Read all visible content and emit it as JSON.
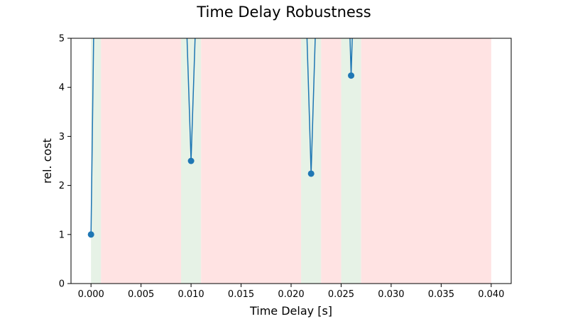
{
  "chart_data": {
    "type": "line",
    "title": "Time Delay Robustness",
    "xlabel": "Time Delay [s]",
    "ylabel": "rel. cost",
    "xlim": [
      -0.002,
      0.042
    ],
    "ylim": [
      0,
      5
    ],
    "xticks": [
      0.0,
      0.005,
      0.01,
      0.015,
      0.02,
      0.025,
      0.03,
      0.035,
      0.04
    ],
    "xtick_labels": [
      "0.000",
      "0.005",
      "0.010",
      "0.015",
      "0.020",
      "0.025",
      "0.030",
      "0.035",
      "0.040"
    ],
    "yticks": [
      0,
      1,
      2,
      3,
      4,
      5
    ],
    "ytick_labels": [
      "0",
      "1",
      "2",
      "3",
      "4",
      "5"
    ],
    "grid": false,
    "line_color": "#1f77b4",
    "stable_color": "#e6f2e6",
    "unstable_color": "#ffe3e3",
    "regions": [
      {
        "status": "stable",
        "x": [
          0.0,
          0.001
        ]
      },
      {
        "status": "unstable",
        "x": [
          0.001,
          0.009
        ]
      },
      {
        "status": "stable",
        "x": [
          0.009,
          0.011
        ]
      },
      {
        "status": "unstable",
        "x": [
          0.011,
          0.021
        ]
      },
      {
        "status": "stable",
        "x": [
          0.021,
          0.023
        ]
      },
      {
        "status": "unstable",
        "x": [
          0.023,
          0.025
        ]
      },
      {
        "status": "stable",
        "x": [
          0.025,
          0.027
        ]
      },
      {
        "status": "unstable",
        "x": [
          0.027,
          0.04
        ]
      }
    ],
    "series": [
      {
        "x": [
          0.0,
          0.0003,
          0.0095,
          0.01,
          0.0105,
          0.0215,
          0.022,
          0.0225,
          0.0258,
          0.026,
          0.0262
        ],
        "y": [
          1.0,
          5.6,
          5.6,
          2.5,
          5.6,
          5.6,
          2.24,
          5.6,
          5.6,
          4.24,
          5.6
        ]
      }
    ],
    "markers": {
      "x": [
        0.0,
        0.01,
        0.022,
        0.026
      ],
      "y": [
        1.0,
        2.5,
        2.24,
        4.24
      ]
    }
  }
}
